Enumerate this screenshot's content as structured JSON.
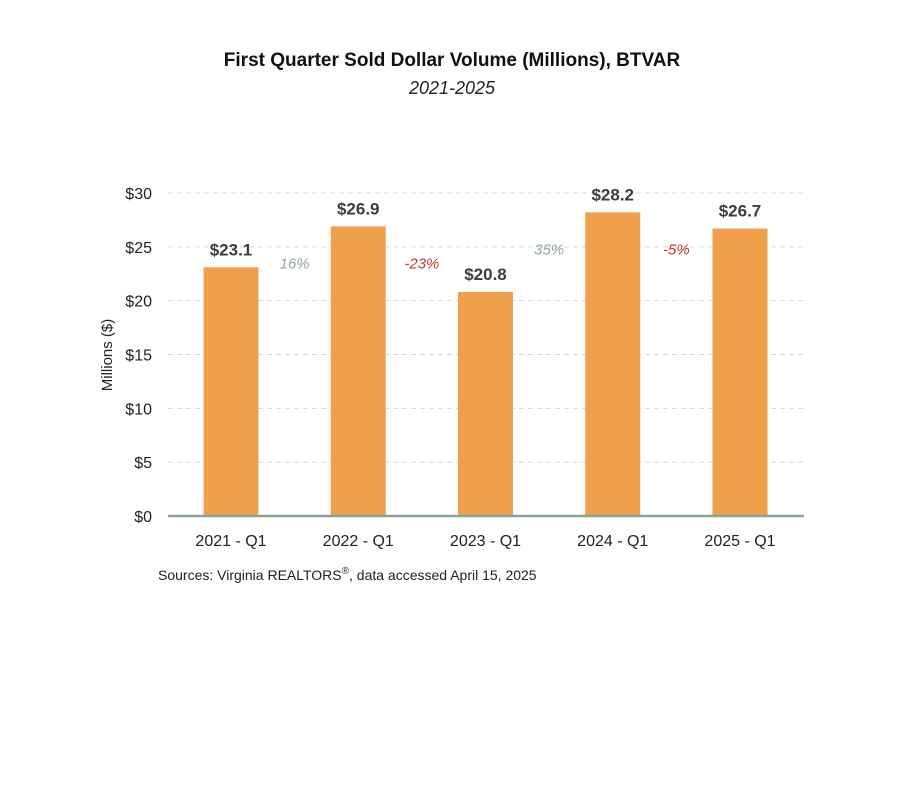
{
  "chart_data": {
    "type": "bar",
    "title": "First Quarter Sold Dollar Volume (Millions), BTVAR",
    "subtitle": "2021-2025",
    "ylabel": "Millions ($)",
    "xlabel": "",
    "categories": [
      "2021 - Q1",
      "2022 - Q1",
      "2023 - Q1",
      "2024 - Q1",
      "2025 - Q1"
    ],
    "values": [
      23.1,
      26.9,
      20.8,
      28.2,
      26.7
    ],
    "data_labels": [
      "$23.1",
      "$26.9",
      "$20.8",
      "$28.2",
      "$26.7"
    ],
    "ylim": [
      0,
      30
    ],
    "yticks": [
      0,
      5,
      10,
      15,
      20,
      25,
      30
    ],
    "ytick_labels": [
      "$0",
      "$5",
      "$10",
      "$15",
      "$20",
      "$25",
      "$30"
    ],
    "grid": true,
    "bar_color": "#F0A04B",
    "annotations": [
      {
        "text": "16%",
        "between": [
          0,
          1
        ],
        "color": "#8FA89C"
      },
      {
        "text": "-23%",
        "between": [
          1,
          2
        ],
        "color": "#C0392B"
      },
      {
        "text": "35%",
        "between": [
          2,
          3
        ],
        "color": "#8FA89C"
      },
      {
        "text": "-5%",
        "between": [
          3,
          4
        ],
        "color": "#C0392B"
      }
    ]
  },
  "source": {
    "prefix": "Sources: Virginia REALTORS",
    "mark": "®",
    "suffix": ", data accessed April 15, 2025"
  }
}
